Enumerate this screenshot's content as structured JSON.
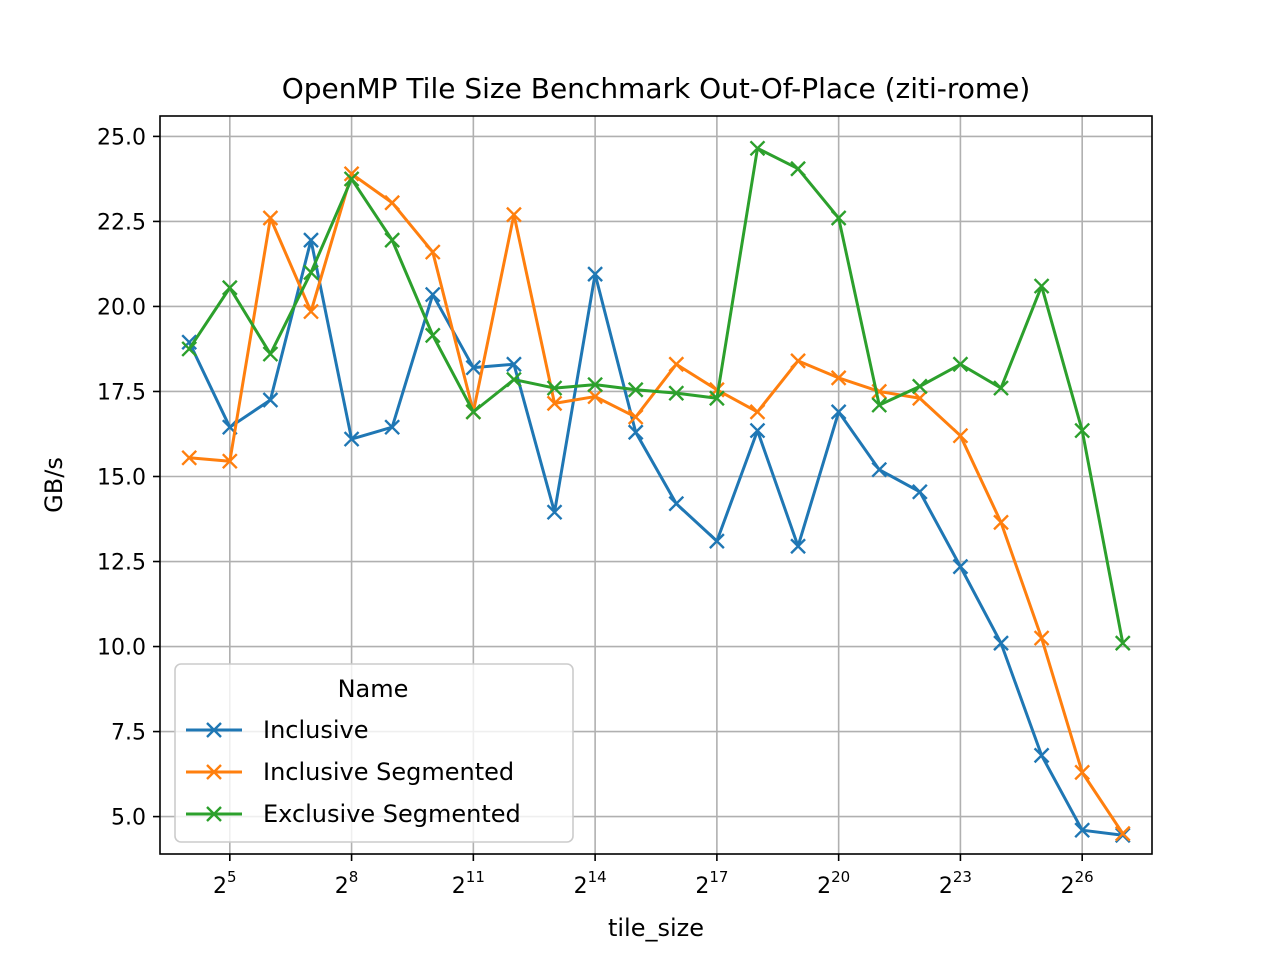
{
  "chart_data": {
    "type": "line",
    "title": "OpenMP Tile Size Benchmark Out-Of-Place (ziti-rome)",
    "xlabel": "tile_size",
    "ylabel": "GB/s",
    "x_scale": "log2",
    "x_base": "2",
    "x_exponents": [
      4,
      5,
      6,
      7,
      8,
      9,
      10,
      11,
      12,
      13,
      14,
      15,
      16,
      17,
      18,
      19,
      20,
      21,
      22,
      23,
      24,
      25,
      26,
      27
    ],
    "x_tick_exponents": [
      "5",
      "8",
      "11",
      "14",
      "17",
      "20",
      "23",
      "26"
    ],
    "y_ticks": [
      "5.0",
      "7.5",
      "10.0",
      "12.5",
      "15.0",
      "17.5",
      "20.0",
      "22.5",
      "25.0"
    ],
    "ylim": [
      3.9,
      25.6
    ],
    "grid": true,
    "legend": {
      "title": "Name",
      "placement": "lower-left"
    },
    "series": [
      {
        "name": "Inclusive",
        "color": "#1f77b4",
        "marker": "x",
        "values": [
          18.95,
          16.45,
          17.25,
          21.95,
          16.1,
          16.45,
          20.35,
          18.2,
          18.3,
          13.95,
          20.95,
          16.3,
          14.2,
          13.1,
          16.35,
          12.95,
          16.9,
          15.2,
          14.55,
          12.35,
          10.1,
          6.8,
          4.6,
          4.45
        ]
      },
      {
        "name": "Inclusive Segmented",
        "color": "#ff7f0e",
        "marker": "x",
        "values": [
          15.55,
          15.45,
          22.6,
          19.85,
          23.9,
          23.05,
          21.6,
          16.9,
          22.7,
          17.15,
          17.35,
          16.75,
          18.3,
          17.55,
          16.9,
          18.4,
          17.9,
          17.5,
          17.3,
          16.2,
          13.65,
          10.25,
          6.3,
          4.5
        ]
      },
      {
        "name": "Exclusive Segmented",
        "color": "#2ca02c",
        "marker": "x",
        "values": [
          18.75,
          20.55,
          18.6,
          21.0,
          23.75,
          21.95,
          19.15,
          16.9,
          17.85,
          17.6,
          17.7,
          17.55,
          17.45,
          17.3,
          24.65,
          24.05,
          22.6,
          17.1,
          17.65,
          18.3,
          17.6,
          20.6,
          16.35,
          10.1
        ]
      }
    ]
  }
}
